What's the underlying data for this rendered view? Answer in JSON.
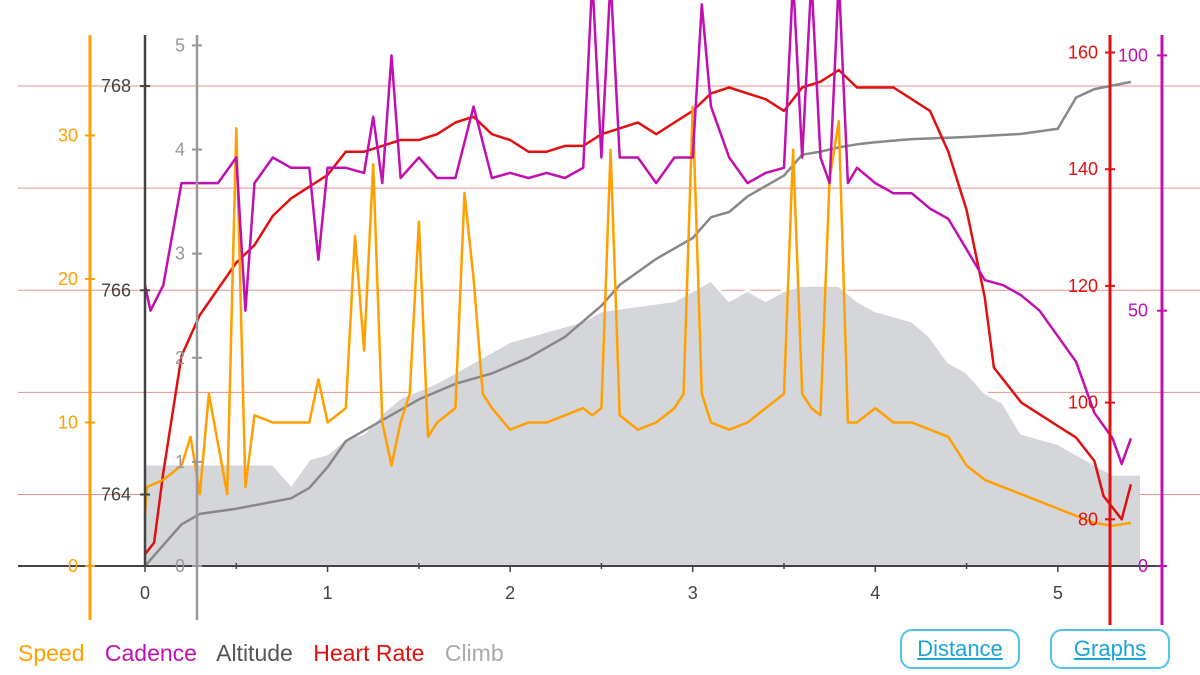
{
  "chart_data": {
    "type": "line",
    "xlabel": "",
    "x_range": [
      0,
      5.45
    ],
    "x_ticks": [
      "0",
      "1",
      "2",
      "3",
      "4",
      "5"
    ],
    "legend": [
      "Speed",
      "Cadence",
      "Altitude",
      "Heart Rate",
      "Climb"
    ],
    "legend_placement": "bottom-left",
    "grid": "horizontal",
    "colors": {
      "speed": "#ffa000",
      "cadence": "#c010b0",
      "altitude": "#444444",
      "heart_rate": "#e01010",
      "climb": "#888888",
      "altitude_fill": "#d4d6da",
      "grid": "#e89090",
      "axis_zero": "#444444"
    },
    "axes": {
      "speed": {
        "ylim": [
          0,
          37
        ],
        "ticks": [
          "0",
          "10",
          "20",
          "30"
        ]
      },
      "altitude": {
        "ylim": [
          763.3,
          768.5
        ],
        "ticks": [
          "764",
          "766",
          "768"
        ]
      },
      "climb": {
        "ylim": [
          0,
          5.1
        ],
        "ticks": [
          "0",
          "1",
          "2",
          "3",
          "4",
          "5"
        ]
      },
      "heart_rate": {
        "ylim": [
          72,
          163
        ],
        "ticks": [
          "80",
          "100",
          "120",
          "140",
          "160"
        ]
      },
      "cadence": {
        "ylim": [
          0,
          104
        ],
        "ticks": [
          "0",
          "50",
          "100"
        ]
      }
    },
    "series": [
      {
        "name": "Altitude",
        "axis": "altitude",
        "x": [
          0,
          0.1,
          0.2,
          0.3,
          0.5,
          0.7,
          0.8,
          0.9,
          1.0,
          1.1,
          1.2,
          1.3,
          1.4,
          1.6,
          1.8,
          2.0,
          2.2,
          2.4,
          2.5,
          2.7,
          2.9,
          3.0,
          3.1,
          3.2,
          3.3,
          3.4,
          3.5,
          3.6,
          3.8,
          3.9,
          4.0,
          4.2,
          4.3,
          4.4,
          4.5,
          4.6,
          4.7,
          4.8,
          5.0,
          5.2,
          5.3,
          5.45
        ],
        "values": [
          764.3,
          764.3,
          764.3,
          764.3,
          764.3,
          764.3,
          764.1,
          764.35,
          764.4,
          764.55,
          764.6,
          764.8,
          764.95,
          765.1,
          765.3,
          765.5,
          765.6,
          765.7,
          765.8,
          765.85,
          765.9,
          766,
          766.1,
          765.9,
          766,
          765.9,
          766,
          766.05,
          766.05,
          765.9,
          765.8,
          765.7,
          765.55,
          765.3,
          765.2,
          765,
          764.9,
          764.6,
          764.5,
          764.3,
          764.2,
          764.2
        ]
      },
      {
        "name": "Climb",
        "axis": "climb",
        "x": [
          0,
          0.05,
          0.2,
          0.3,
          0.5,
          0.8,
          0.9,
          1.0,
          1.1,
          1.3,
          1.5,
          1.7,
          1.9,
          2.1,
          2.3,
          2.5,
          2.6,
          2.8,
          2.9,
          3.0,
          3.1,
          3.2,
          3.3,
          3.4,
          3.5,
          3.6,
          3.7,
          3.8,
          3.9,
          4.0,
          4.2,
          4.5,
          4.8,
          5.0,
          5.1,
          5.2,
          5.4
        ],
        "values": [
          0,
          0.1,
          0.4,
          0.5,
          0.55,
          0.65,
          0.75,
          0.95,
          1.2,
          1.4,
          1.6,
          1.75,
          1.85,
          2.0,
          2.2,
          2.5,
          2.7,
          2.95,
          3.05,
          3.15,
          3.35,
          3.4,
          3.55,
          3.65,
          3.75,
          3.95,
          3.98,
          4.02,
          4.05,
          4.07,
          4.1,
          4.12,
          4.15,
          4.2,
          4.5,
          4.58,
          4.65
        ]
      },
      {
        "name": "Heart Rate",
        "axis": "heart_rate",
        "x": [
          0,
          0.05,
          0.1,
          0.2,
          0.3,
          0.5,
          0.6,
          0.7,
          0.8,
          0.9,
          1.0,
          1.1,
          1.2,
          1.3,
          1.4,
          1.5,
          1.6,
          1.7,
          1.8,
          1.9,
          2.0,
          2.1,
          2.2,
          2.3,
          2.4,
          2.5,
          2.6,
          2.7,
          2.8,
          2.9,
          3.0,
          3.1,
          3.2,
          3.3,
          3.4,
          3.5,
          3.6,
          3.7,
          3.8,
          3.9,
          4.0,
          4.1,
          4.2,
          4.3,
          4.4,
          4.5,
          4.6,
          4.65,
          4.7,
          4.8,
          4.9,
          5.0,
          5.1,
          5.2,
          5.25,
          5.3,
          5.35,
          5.4
        ],
        "values": [
          74,
          76,
          88,
          108,
          115,
          124,
          127,
          132,
          135,
          137,
          139,
          143,
          143,
          144,
          145,
          145,
          146,
          148,
          149,
          146,
          145,
          143,
          143,
          144,
          144,
          146,
          147,
          148,
          146,
          148,
          150,
          153,
          154,
          153,
          152,
          150,
          154,
          155,
          157,
          154,
          154,
          154,
          152,
          150,
          143,
          133,
          118,
          106,
          104,
          100,
          98,
          96,
          94,
          90,
          84,
          82,
          80,
          86
        ]
      },
      {
        "name": "Speed",
        "axis": "speed",
        "x": [
          0,
          0.01,
          0.1,
          0.2,
          0.25,
          0.3,
          0.35,
          0.45,
          0.5,
          0.55,
          0.6,
          0.7,
          0.8,
          0.9,
          0.95,
          1.0,
          1.1,
          1.15,
          1.2,
          1.25,
          1.3,
          1.35,
          1.4,
          1.45,
          1.5,
          1.55,
          1.6,
          1.7,
          1.75,
          1.8,
          1.85,
          1.9,
          2.0,
          2.1,
          2.2,
          2.3,
          2.4,
          2.45,
          2.5,
          2.55,
          2.6,
          2.65,
          2.7,
          2.8,
          2.9,
          2.95,
          3.0,
          3.05,
          3.1,
          3.2,
          3.3,
          3.4,
          3.5,
          3.55,
          3.6,
          3.65,
          3.7,
          3.75,
          3.8,
          3.85,
          3.9,
          3.95,
          4.0,
          4.1,
          4.2,
          4.4,
          4.5,
          4.6,
          4.7,
          4.8,
          5.0,
          5.1,
          5.2,
          5.3,
          5.4
        ],
        "values": [
          3.5,
          5.5,
          6,
          7,
          9,
          5,
          12,
          5,
          30.5,
          5.5,
          10.5,
          10,
          10,
          10,
          13,
          10,
          11,
          23,
          15,
          28,
          10,
          7,
          10,
          12,
          24,
          9,
          10,
          11,
          26,
          20,
          12,
          11,
          9.5,
          10,
          10,
          10.5,
          11,
          10.5,
          11,
          29,
          10.5,
          10,
          9.5,
          10,
          11,
          12,
          32,
          12,
          10,
          9.5,
          10,
          11,
          12,
          29,
          12,
          11,
          10.5,
          27,
          31,
          10,
          10,
          10.5,
          11,
          10,
          10,
          9,
          7,
          6,
          5.5,
          5,
          4,
          3.5,
          3,
          2.8,
          3
        ]
      },
      {
        "name": "Cadence",
        "axis": "cadence",
        "x": [
          0,
          0.03,
          0.1,
          0.2,
          0.3,
          0.4,
          0.5,
          0.55,
          0.6,
          0.7,
          0.8,
          0.9,
          0.95,
          1.0,
          1.05,
          1.1,
          1.2,
          1.25,
          1.3,
          1.35,
          1.4,
          1.5,
          1.6,
          1.7,
          1.8,
          1.9,
          2.0,
          2.1,
          2.2,
          2.3,
          2.4,
          2.45,
          2.5,
          2.55,
          2.6,
          2.7,
          2.8,
          2.9,
          3.0,
          3.05,
          3.1,
          3.2,
          3.3,
          3.4,
          3.5,
          3.55,
          3.6,
          3.65,
          3.7,
          3.75,
          3.8,
          3.85,
          3.9,
          4.0,
          4.1,
          4.2,
          4.3,
          4.4,
          4.5,
          4.6,
          4.7,
          4.8,
          4.9,
          5.0,
          5.1,
          5.2,
          5.3,
          5.35,
          5.4
        ],
        "values": [
          55,
          50,
          55,
          75,
          75,
          75,
          80,
          50,
          75,
          80,
          78,
          78,
          60,
          78,
          78,
          78,
          77,
          88,
          75,
          100,
          76,
          80,
          76,
          76,
          90,
          76,
          77,
          76,
          77,
          76,
          78,
          115,
          80,
          115,
          80,
          80,
          75,
          80,
          80,
          110,
          90,
          80,
          75,
          77,
          78,
          115,
          80,
          115,
          80,
          75,
          115,
          75,
          78,
          75,
          73,
          73,
          70,
          68,
          62,
          56,
          55,
          53,
          50,
          45,
          40,
          30,
          25,
          20,
          25
        ]
      }
    ]
  },
  "legend_labels": {
    "speed": "Speed",
    "cadence": "Cadence",
    "altitude": "Altitude",
    "heart_rate": "Heart Rate",
    "climb": "Climb"
  },
  "buttons": {
    "distance": "Distance",
    "graphs": "Graphs"
  }
}
